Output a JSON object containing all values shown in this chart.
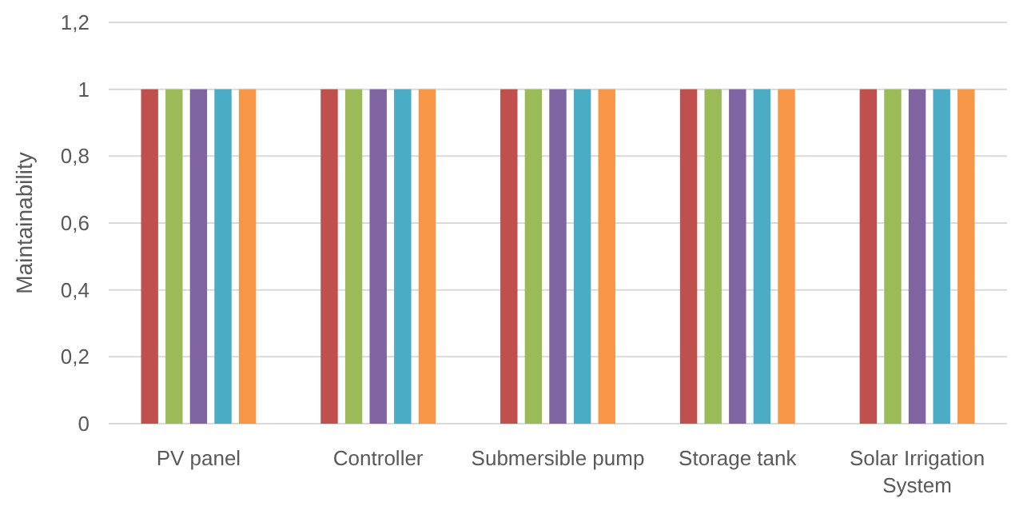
{
  "chart_data": {
    "type": "bar",
    "ylabel": "Maintainability",
    "categories": [
      "PV panel",
      "Controller",
      "Submersible pump",
      "Storage tank",
      "Solar Irrigation System"
    ],
    "series": [
      {
        "color": "#c0504d",
        "values": [
          1,
          1,
          1,
          1,
          1
        ]
      },
      {
        "color": "#9bbb59",
        "values": [
          1,
          1,
          1,
          1,
          1
        ]
      },
      {
        "color": "#8064a2",
        "values": [
          1,
          1,
          1,
          1,
          1
        ]
      },
      {
        "color": "#4bacc6",
        "values": [
          1,
          1,
          1,
          1,
          1
        ]
      },
      {
        "color": "#f79646",
        "values": [
          1,
          1,
          1,
          1,
          1
        ]
      }
    ],
    "ylim": [
      0,
      1.2
    ],
    "yticks": [
      0,
      {
        "value": 0.2,
        "label": "0,2"
      },
      {
        "value": 0.4,
        "label": "0,4"
      },
      {
        "value": 0.6,
        "label": "0,6"
      },
      {
        "value": 0.8,
        "label": "0,8"
      },
      1,
      {
        "value": 1.2,
        "label": "1,2"
      }
    ],
    "grid": "y"
  }
}
